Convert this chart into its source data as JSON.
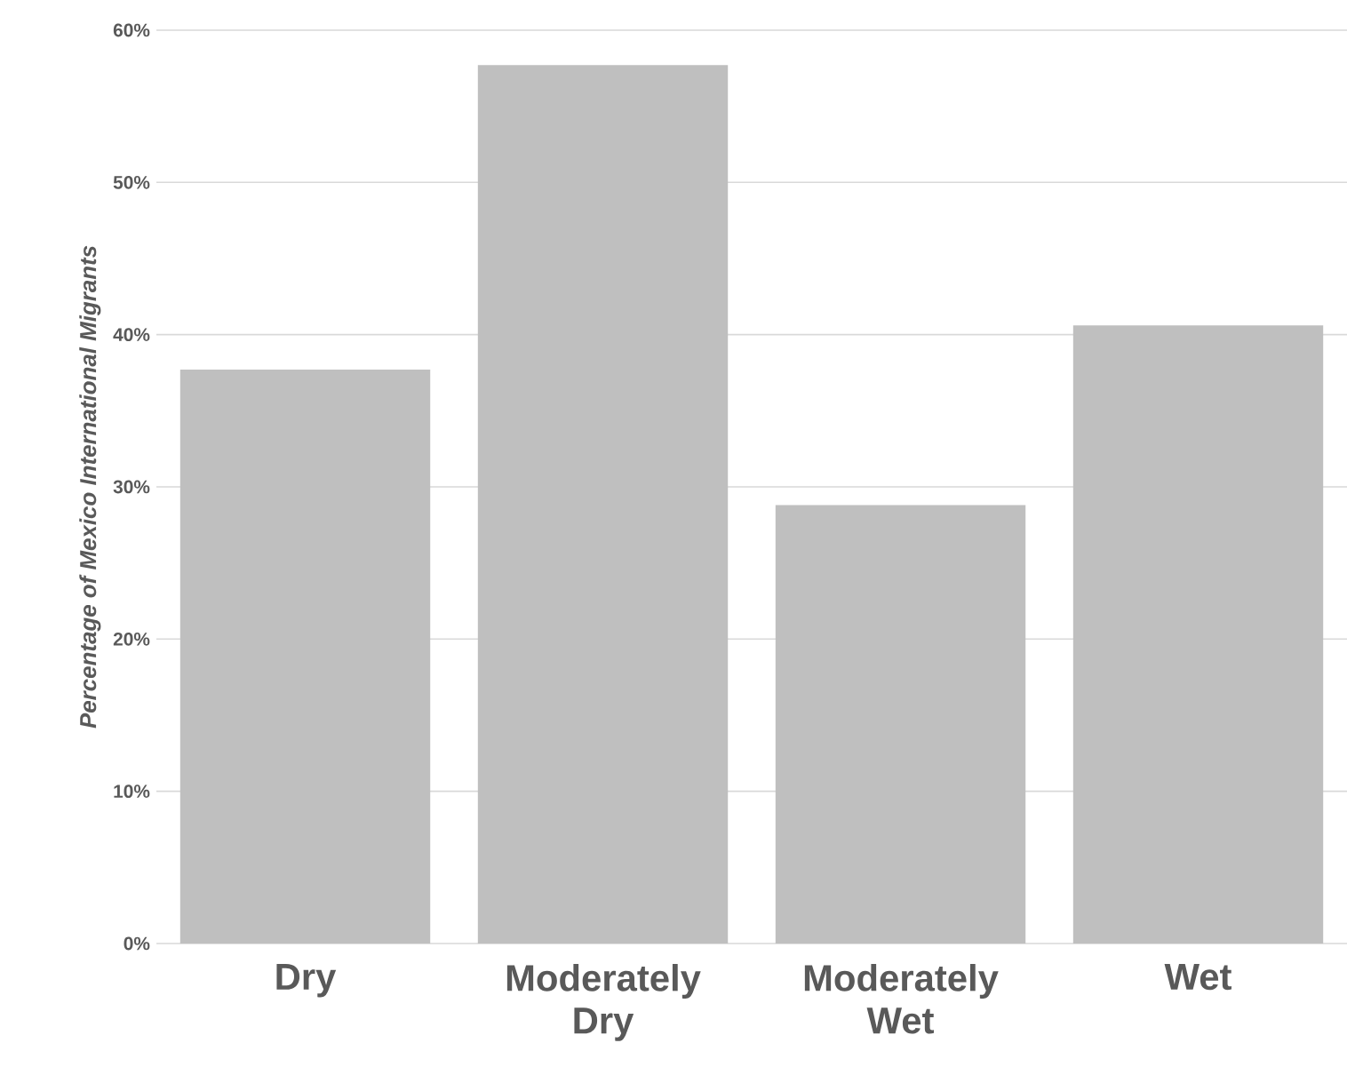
{
  "chart_data": {
    "type": "bar",
    "ylabel": "Percentage of Mexico International Migrants",
    "categories": [
      "Dry",
      "Moderately Dry",
      "Moderately Wet",
      "Wet"
    ],
    "values": [
      37.7,
      57.7,
      28.8,
      40.6
    ],
    "color": "#bfbfbf",
    "ylim": [
      0,
      60
    ],
    "yticks": [
      {
        "value": 0,
        "label": "0%"
      },
      {
        "value": 10,
        "label": "10%"
      },
      {
        "value": 20,
        "label": "20%"
      },
      {
        "value": 30,
        "label": "30%"
      },
      {
        "value": 40,
        "label": "40%"
      },
      {
        "value": 50,
        "label": "50%"
      },
      {
        "value": 60,
        "label": "60%"
      }
    ],
    "grid": "y"
  }
}
